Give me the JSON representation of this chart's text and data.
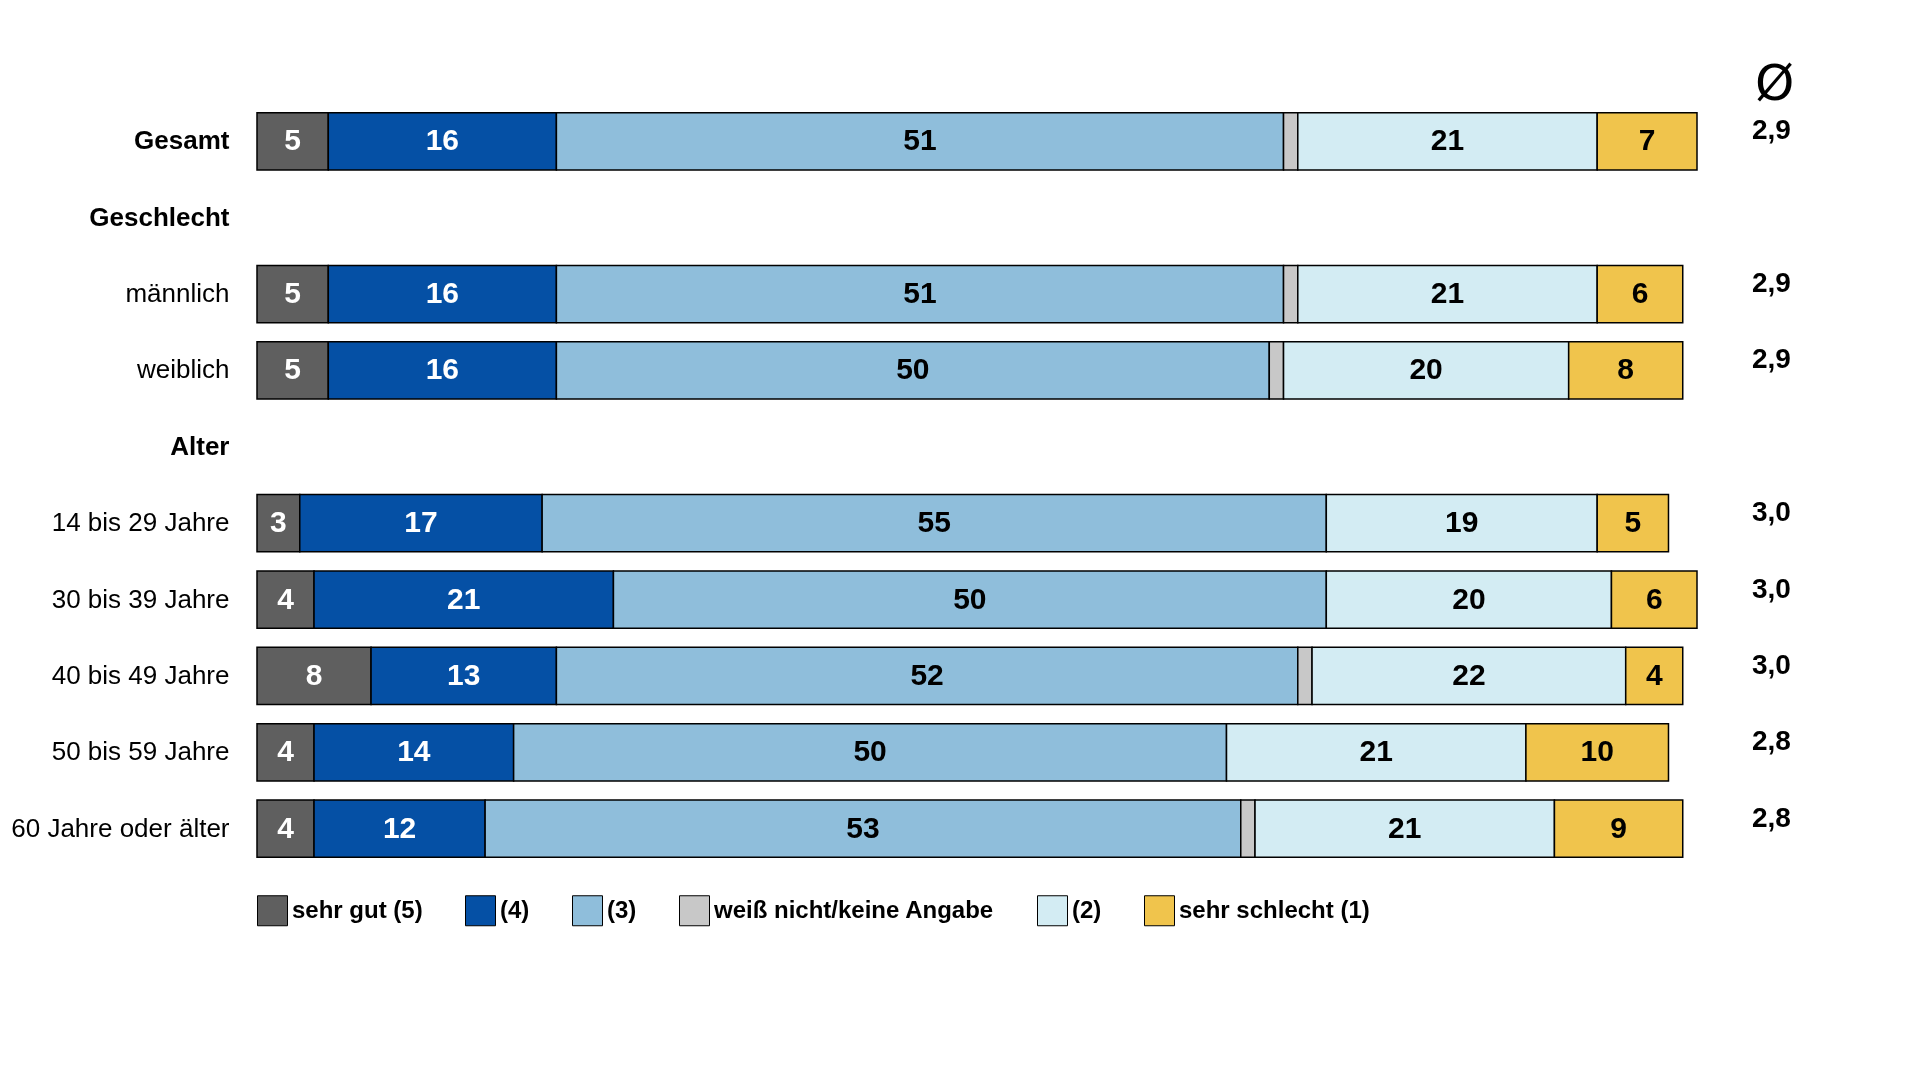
{
  "chart_data": {
    "type": "bar",
    "orientation": "horizontal",
    "stacked": true,
    "legend": "bottom",
    "grid": false,
    "categories": [
      "Gesamt",
      "Geschlecht",
      "männlich",
      "weiblich",
      "Alter",
      "14 bis 29 Jahre",
      "30 bis 39 Jahre",
      "40 bis 49 Jahre",
      "50 bis 59 Jahre",
      "60 Jahre oder älter"
    ],
    "series": [
      {
        "name": "sehr gut (5)",
        "color": "#5f5f5f",
        "values": [
          5,
          null,
          5,
          5,
          null,
          3,
          4,
          8,
          4,
          4
        ],
        "value_labels": [
          "5",
          null,
          "5",
          "5",
          null,
          "3",
          "4",
          "8",
          "4",
          "4"
        ]
      },
      {
        "name": "(4)",
        "color": "#0550a5",
        "values": [
          16,
          null,
          16,
          16,
          null,
          17,
          21,
          13,
          14,
          12
        ],
        "value_labels": [
          "16",
          null,
          "16",
          "16",
          null,
          "17",
          "21",
          "13",
          "14",
          "12"
        ]
      },
      {
        "name": "(3)",
        "color": "#8fbedb",
        "values": [
          51,
          null,
          51,
          50,
          null,
          55,
          50,
          52,
          50,
          53
        ],
        "value_labels": [
          "51",
          null,
          "51",
          "50",
          null,
          "55",
          "50",
          "52",
          "50",
          "53"
        ]
      },
      {
        "name": "weiß nicht/keine Angabe",
        "color": "#c8c8c8",
        "values": [
          1,
          null,
          1,
          1,
          null,
          null,
          null,
          1,
          null,
          1
        ],
        "value_labels": [
          null,
          null,
          null,
          null,
          null,
          null,
          null,
          null,
          null,
          null
        ]
      },
      {
        "name": "(2)",
        "color": "#d3ecf3",
        "values": [
          21,
          null,
          21,
          20,
          null,
          19,
          20,
          22,
          21,
          21
        ],
        "value_labels": [
          "21",
          null,
          "21",
          "20",
          null,
          "19",
          "20",
          "22",
          "21",
          "21"
        ]
      },
      {
        "name": "sehr schlecht (1)",
        "color": "#f0c44c",
        "values": [
          7,
          null,
          6,
          8,
          null,
          5,
          6,
          4,
          10,
          9
        ],
        "value_labels": [
          "7",
          null,
          "6",
          "8",
          null,
          "5",
          "6",
          "4",
          "10",
          "9"
        ]
      }
    ],
    "annotations": [
      "Ø",
      "2,9",
      "2,9",
      "2,9",
      "3,0",
      "3,0",
      "3,0",
      "2,8",
      "2,8"
    ]
  }
}
